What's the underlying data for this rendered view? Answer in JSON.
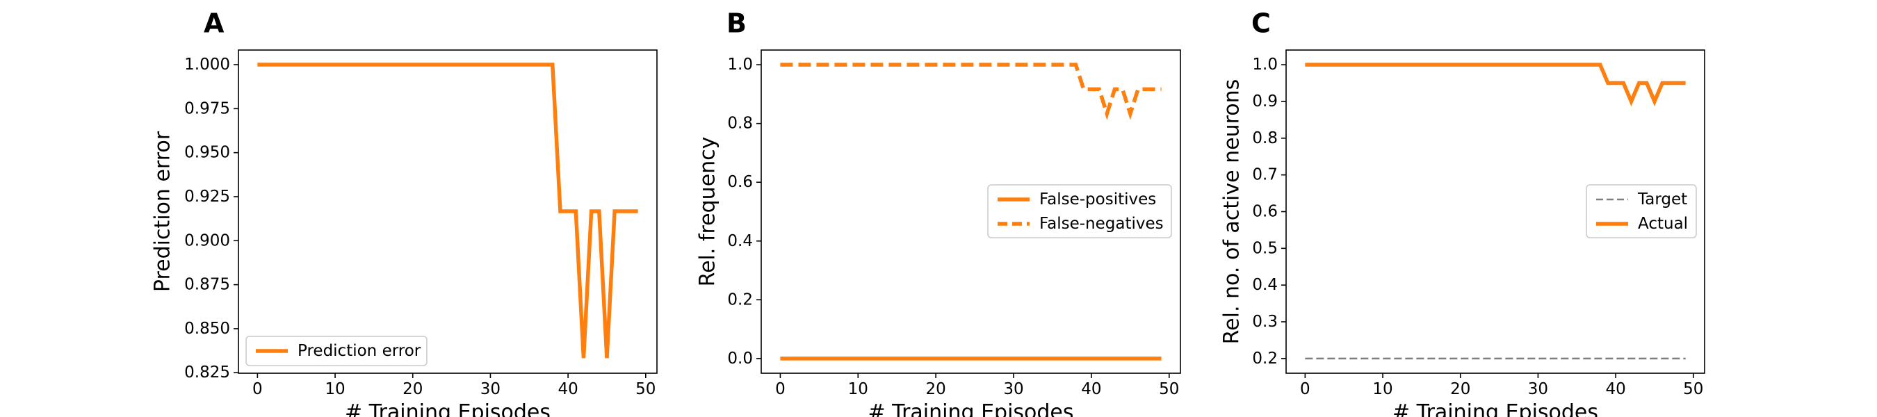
{
  "colors": {
    "series": "#ff7f0e",
    "target": "#7f7f7f",
    "axis": "#000000"
  },
  "chart_data": [
    {
      "type": "line",
      "panel": "A",
      "xlabel": "# Training Episodes",
      "ylabel": "Prediction error",
      "xlim": [
        -2.45,
        51.45
      ],
      "ylim": [
        0.8247,
        1.0083
      ],
      "xticks": [
        0,
        10,
        20,
        30,
        40,
        50
      ],
      "xtick_labels": [
        "0",
        "10",
        "20",
        "30",
        "40",
        "50"
      ],
      "yticks": [
        0.825,
        0.85,
        0.875,
        0.9,
        0.925,
        0.95,
        0.975,
        1.0
      ],
      "ytick_labels": [
        "0.825",
        "0.850",
        "0.875",
        "0.900",
        "0.925",
        "0.950",
        "0.975",
        "1.000"
      ],
      "legend_location": "lower-left",
      "series": [
        {
          "name": "Prediction error",
          "style": "solid",
          "x": [
            0,
            1,
            2,
            3,
            4,
            5,
            6,
            7,
            8,
            9,
            10,
            11,
            12,
            13,
            14,
            15,
            16,
            17,
            18,
            19,
            20,
            21,
            22,
            23,
            24,
            25,
            26,
            27,
            28,
            29,
            30,
            31,
            32,
            33,
            34,
            35,
            36,
            37,
            38,
            39,
            40,
            41,
            42,
            43,
            44,
            45,
            46,
            47,
            48,
            49
          ],
          "values": [
            1.0,
            1.0,
            1.0,
            1.0,
            1.0,
            1.0,
            1.0,
            1.0,
            1.0,
            1.0,
            1.0,
            1.0,
            1.0,
            1.0,
            1.0,
            1.0,
            1.0,
            1.0,
            1.0,
            1.0,
            1.0,
            1.0,
            1.0,
            1.0,
            1.0,
            1.0,
            1.0,
            1.0,
            1.0,
            1.0,
            1.0,
            1.0,
            1.0,
            1.0,
            1.0,
            1.0,
            1.0,
            1.0,
            1.0,
            0.9167,
            0.9167,
            0.9167,
            0.8333,
            0.9167,
            0.9167,
            0.8333,
            0.9167,
            0.9167,
            0.9167,
            0.9167
          ]
        }
      ]
    },
    {
      "type": "line",
      "panel": "B",
      "xlabel": "# Training Episodes",
      "ylabel": "Rel. frequency",
      "xlim": [
        -2.45,
        51.45
      ],
      "ylim": [
        -0.05,
        1.05
      ],
      "xticks": [
        0,
        10,
        20,
        30,
        40,
        50
      ],
      "xtick_labels": [
        "0",
        "10",
        "20",
        "30",
        "40",
        "50"
      ],
      "yticks": [
        0.0,
        0.2,
        0.4,
        0.6,
        0.8,
        1.0
      ],
      "ytick_labels": [
        "0.0",
        "0.2",
        "0.4",
        "0.6",
        "0.8",
        "1.0"
      ],
      "legend_location": "center-right",
      "series": [
        {
          "name": "False-positives",
          "style": "solid",
          "x": [
            0,
            49
          ],
          "values": [
            0.0,
            0.0
          ]
        },
        {
          "name": "False-negatives",
          "style": "dashed",
          "x": [
            0,
            1,
            2,
            3,
            4,
            5,
            6,
            7,
            8,
            9,
            10,
            11,
            12,
            13,
            14,
            15,
            16,
            17,
            18,
            19,
            20,
            21,
            22,
            23,
            24,
            25,
            26,
            27,
            28,
            29,
            30,
            31,
            32,
            33,
            34,
            35,
            36,
            37,
            38,
            39,
            40,
            41,
            42,
            43,
            44,
            45,
            46,
            47,
            48,
            49
          ],
          "values": [
            1.0,
            1.0,
            1.0,
            1.0,
            1.0,
            1.0,
            1.0,
            1.0,
            1.0,
            1.0,
            1.0,
            1.0,
            1.0,
            1.0,
            1.0,
            1.0,
            1.0,
            1.0,
            1.0,
            1.0,
            1.0,
            1.0,
            1.0,
            1.0,
            1.0,
            1.0,
            1.0,
            1.0,
            1.0,
            1.0,
            1.0,
            1.0,
            1.0,
            1.0,
            1.0,
            1.0,
            1.0,
            1.0,
            1.0,
            0.9167,
            0.9167,
            0.9167,
            0.8333,
            0.9167,
            0.9167,
            0.8333,
            0.9167,
            0.9167,
            0.9167,
            0.9167
          ]
        }
      ]
    },
    {
      "type": "line",
      "panel": "C",
      "xlabel": "# Training Episodes",
      "ylabel": "Rel. no. of active neurons",
      "xlim": [
        -2.45,
        51.45
      ],
      "ylim": [
        0.16,
        1.04
      ],
      "xticks": [
        0,
        10,
        20,
        30,
        40,
        50
      ],
      "xtick_labels": [
        "0",
        "10",
        "20",
        "30",
        "40",
        "50"
      ],
      "yticks": [
        0.2,
        0.3,
        0.4,
        0.5,
        0.6,
        0.7,
        0.8,
        0.9,
        1.0
      ],
      "ytick_labels": [
        "0.2",
        "0.3",
        "0.4",
        "0.5",
        "0.6",
        "0.7",
        "0.8",
        "0.9",
        "1.0"
      ],
      "legend_location": "center-right",
      "series": [
        {
          "name": "Target",
          "style": "thin-dashed",
          "x": [
            0,
            49
          ],
          "values": [
            0.2,
            0.2
          ]
        },
        {
          "name": "Actual",
          "style": "solid",
          "x": [
            0,
            1,
            2,
            3,
            4,
            5,
            6,
            7,
            8,
            9,
            10,
            11,
            12,
            13,
            14,
            15,
            16,
            17,
            18,
            19,
            20,
            21,
            22,
            23,
            24,
            25,
            26,
            27,
            28,
            29,
            30,
            31,
            32,
            33,
            34,
            35,
            36,
            37,
            38,
            39,
            40,
            41,
            42,
            43,
            44,
            45,
            46,
            47,
            48,
            49
          ],
          "values": [
            1.0,
            1.0,
            1.0,
            1.0,
            1.0,
            1.0,
            1.0,
            1.0,
            1.0,
            1.0,
            1.0,
            1.0,
            1.0,
            1.0,
            1.0,
            1.0,
            1.0,
            1.0,
            1.0,
            1.0,
            1.0,
            1.0,
            1.0,
            1.0,
            1.0,
            1.0,
            1.0,
            1.0,
            1.0,
            1.0,
            1.0,
            1.0,
            1.0,
            1.0,
            1.0,
            1.0,
            1.0,
            1.0,
            1.0,
            0.95,
            0.95,
            0.95,
            0.9,
            0.95,
            0.95,
            0.9,
            0.95,
            0.95,
            0.95,
            0.95
          ]
        }
      ]
    }
  ]
}
